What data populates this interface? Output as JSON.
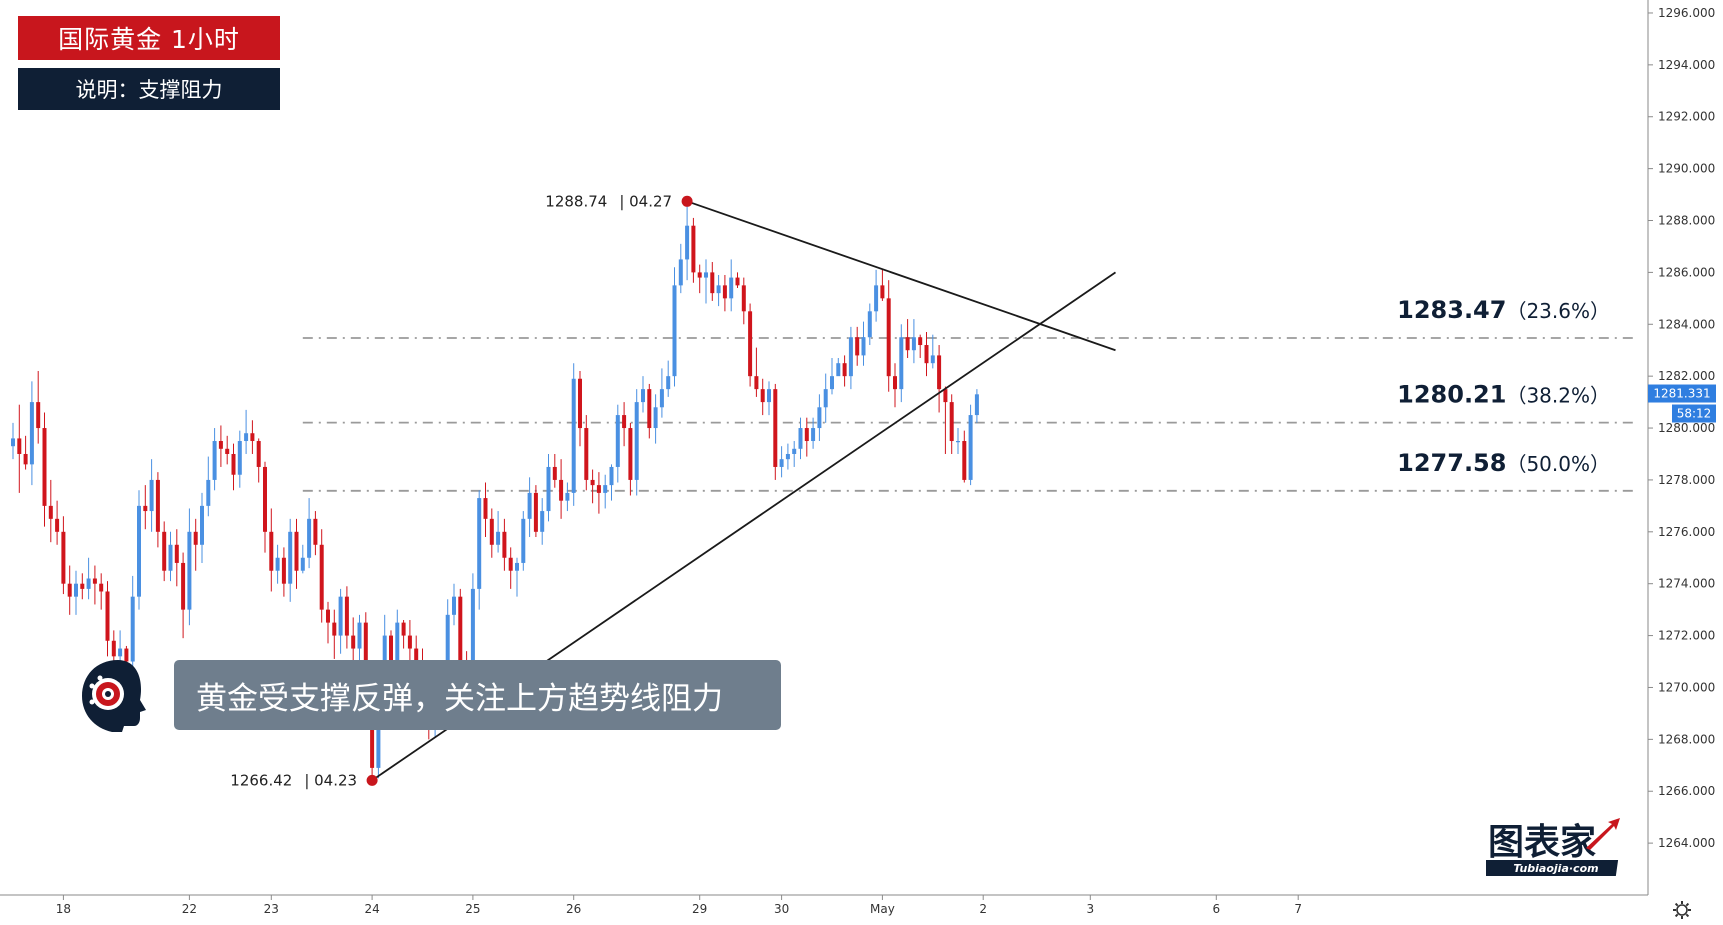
{
  "header": {
    "title": "国际黄金  1小时",
    "subtitle": "说明：支撑阻力"
  },
  "callout": {
    "text": "黄金受支撑反弹，关注上方趋势线阻力"
  },
  "watermark": {
    "brand": "图表家",
    "site": "Tubiaojia·com"
  },
  "colors": {
    "up": "#4a90e2",
    "down": "#d0151c",
    "title_bg": "#c8161d",
    "subtitle_bg": "#0f1f35",
    "callout_bg": "#6f7e8d",
    "marker": "#c8161d",
    "price_tag": "#2f7ee0"
  },
  "chart_data": {
    "type": "candlestick",
    "symbol_timeframe": "国际黄金 1小时",
    "ylim": [
      1262.0,
      1296.5
    ],
    "y_ticks": [
      "1296.000",
      "1294.000",
      "1292.000",
      "1290.000",
      "1288.000",
      "1286.000",
      "1284.000",
      "1282.000",
      "1280.000",
      "1278.000",
      "1276.000",
      "1274.000",
      "1272.000",
      "1270.000",
      "1268.000",
      "1266.000",
      "1264.000"
    ],
    "x_ticks": [
      {
        "label": "18",
        "slot": 8
      },
      {
        "label": "22",
        "slot": 28
      },
      {
        "label": "23",
        "slot": 41
      },
      {
        "label": "24",
        "slot": 57
      },
      {
        "label": "25",
        "slot": 73
      },
      {
        "label": "26",
        "slot": 89
      },
      {
        "label": "29",
        "slot": 109
      },
      {
        "label": "30",
        "slot": 122
      },
      {
        "label": "May",
        "slot": 138
      },
      {
        "label": "2",
        "slot": 154
      },
      {
        "label": "3",
        "slot": 171
      },
      {
        "label": "6",
        "slot": 191
      },
      {
        "label": "7",
        "slot": 204
      }
    ],
    "current_price": "1281.331",
    "countdown": "58:12",
    "points": [
      {
        "label": "1266.42",
        "date": "04.23",
        "price": 1266.42,
        "slot": 57
      },
      {
        "label": "1288.74",
        "date": "04.27",
        "price": 1288.74,
        "slot": 107
      }
    ],
    "trendlines": [
      {
        "name": "support",
        "from": {
          "slot": 57,
          "price": 1266.42
        },
        "to": {
          "slot": 175,
          "price": 1286.0
        }
      },
      {
        "name": "resistance",
        "from": {
          "slot": 107,
          "price": 1288.74
        },
        "to": {
          "slot": 175,
          "price": 1283.0
        }
      }
    ],
    "levels": [
      {
        "value": 1283.47,
        "label": "1283.47",
        "pct": "（23.6%）"
      },
      {
        "value": 1280.21,
        "label": "1280.21",
        "pct": "（38.2%）"
      },
      {
        "value": 1277.58,
        "label": "1277.58",
        "pct": "（50.0%）"
      }
    ],
    "closes": [
      1279.6,
      1279.0,
      1278.6,
      1281.0,
      1280.0,
      1277.0,
      1276.5,
      1276.0,
      1274.0,
      1273.5,
      1274.0,
      1273.8,
      1274.2,
      1274.0,
      1273.7,
      1271.8,
      1271.2,
      1271.5,
      1271.0,
      1273.5,
      1277.0,
      1276.8,
      1278.0,
      1276.0,
      1274.5,
      1275.5,
      1274.8,
      1273.0,
      1276.0,
      1275.5,
      1277.0,
      1278.0,
      1279.5,
      1279.2,
      1279.0,
      1278.2,
      1279.5,
      1279.8,
      1279.5,
      1278.5,
      1276.0,
      1274.5,
      1275.0,
      1274.0,
      1276.0,
      1274.5,
      1275.0,
      1276.5,
      1275.5,
      1273.0,
      1272.5,
      1272.0,
      1273.5,
      1272.0,
      1271.5,
      1272.5,
      1271.0,
      1266.9,
      1270.5,
      1272.0,
      1271.0,
      1272.5,
      1272.0,
      1271.5,
      1271.0,
      1270.5,
      1268.5,
      1269.5,
      1270.0,
      1272.8,
      1273.5,
      1271.0,
      1270.5,
      1273.8,
      1277.3,
      1276.5,
      1275.5,
      1276.0,
      1275.0,
      1274.5,
      1274.8,
      1276.5,
      1277.5,
      1276.0,
      1276.8,
      1278.5,
      1278.0,
      1277.2,
      1277.5,
      1281.9,
      1280.0,
      1278.0,
      1277.8,
      1277.5,
      1277.8,
      1278.5,
      1280.5,
      1280.0,
      1278.0,
      1281.0,
      1281.5,
      1280.0,
      1280.8,
      1281.5,
      1282.0,
      1285.5,
      1286.5,
      1287.8,
      1286.0,
      1285.8,
      1286.0,
      1285.2,
      1285.5,
      1285.0,
      1285.8,
      1285.5,
      1284.5,
      1282.0,
      1281.5,
      1281.0,
      1281.5,
      1278.5,
      1278.8,
      1279.0,
      1279.2,
      1280.0,
      1279.5,
      1280.0,
      1280.8,
      1281.5,
      1282.0,
      1282.5,
      1282.0,
      1283.5,
      1282.8,
      1283.5,
      1284.5,
      1285.5,
      1285.0,
      1282.0,
      1281.5,
      1283.5,
      1283.0,
      1283.5,
      1283.2,
      1282.5,
      1282.8,
      1281.5,
      1281.0,
      1279.5,
      1279.5,
      1278.0,
      1280.5,
      1281.3
    ],
    "ranges": [
      [
        1280.2,
        1278.8
      ],
      [
        1280.9,
        1277.5
      ],
      [
        1279.7,
        1278.4
      ],
      [
        1281.8,
        1277.8
      ],
      [
        1282.2,
        1279.4
      ],
      [
        1280.6,
        1276.2
      ],
      [
        1278.0,
        1275.6
      ],
      [
        1277.2,
        1275.5
      ],
      [
        1276.6,
        1273.6
      ],
      [
        1274.7,
        1272.8
      ],
      [
        1274.5,
        1272.8
      ],
      [
        1274.4,
        1273.4
      ],
      [
        1275.0,
        1273.4
      ],
      [
        1274.7,
        1273.2
      ],
      [
        1274.4,
        1273.0
      ],
      [
        1274.1,
        1271.2
      ],
      [
        1272.2,
        1270.6
      ],
      [
        1272.2,
        1270.9
      ],
      [
        1271.6,
        1270.2
      ],
      [
        1274.3,
        1270.6
      ],
      [
        1277.6,
        1273.0
      ],
      [
        1277.8,
        1276.1
      ],
      [
        1278.8,
        1276.0
      ],
      [
        1278.3,
        1275.4
      ],
      [
        1276.4,
        1274.1
      ],
      [
        1276.0,
        1274.1
      ],
      [
        1276.1,
        1273.9
      ],
      [
        1275.2,
        1271.9
      ],
      [
        1276.9,
        1272.4
      ],
      [
        1276.5,
        1274.5
      ],
      [
        1277.5,
        1274.8
      ],
      [
        1278.9,
        1276.6
      ],
      [
        1280.0,
        1277.6
      ],
      [
        1280.1,
        1278.5
      ],
      [
        1279.7,
        1278.6
      ],
      [
        1279.4,
        1277.6
      ],
      [
        1279.9,
        1277.7
      ],
      [
        1280.7,
        1279.0
      ],
      [
        1280.3,
        1279.0
      ],
      [
        1279.6,
        1277.9
      ],
      [
        1278.7,
        1275.2
      ],
      [
        1276.9,
        1273.7
      ],
      [
        1275.5,
        1274.0
      ],
      [
        1275.4,
        1273.5
      ],
      [
        1276.5,
        1273.3
      ],
      [
        1276.5,
        1273.8
      ],
      [
        1275.5,
        1274.4
      ],
      [
        1277.3,
        1274.6
      ],
      [
        1276.8,
        1275.1
      ],
      [
        1276.1,
        1272.5
      ],
      [
        1273.3,
        1271.7
      ],
      [
        1273.0,
        1271.1
      ],
      [
        1273.8,
        1271.3
      ],
      [
        1273.9,
        1271.5
      ],
      [
        1272.7,
        1270.6
      ],
      [
        1272.8,
        1270.9
      ],
      [
        1272.9,
        1269.0
      ],
      [
        1271.0,
        1266.4
      ],
      [
        1270.9,
        1266.5
      ],
      [
        1272.8,
        1270.1
      ],
      [
        1272.2,
        1270.5
      ],
      [
        1273.0,
        1270.4
      ],
      [
        1272.6,
        1271.5
      ],
      [
        1272.6,
        1270.8
      ],
      [
        1272.0,
        1270.4
      ],
      [
        1271.5,
        1269.5
      ],
      [
        1270.9,
        1268.0
      ],
      [
        1270.4,
        1268.1
      ],
      [
        1270.8,
        1269.2
      ],
      [
        1273.4,
        1269.4
      ],
      [
        1274.0,
        1272.4
      ],
      [
        1273.8,
        1270.3
      ],
      [
        1271.4,
        1270.2
      ],
      [
        1274.4,
        1270.0
      ],
      [
        1277.6,
        1273.0
      ],
      [
        1277.9,
        1275.8
      ],
      [
        1276.9,
        1275.0
      ],
      [
        1276.8,
        1275.2
      ],
      [
        1276.5,
        1274.5
      ],
      [
        1275.4,
        1273.8
      ],
      [
        1275.0,
        1273.5
      ],
      [
        1276.8,
        1274.5
      ],
      [
        1278.1,
        1275.8
      ],
      [
        1277.8,
        1275.8
      ],
      [
        1277.3,
        1275.5
      ],
      [
        1279.0,
        1276.4
      ],
      [
        1279.0,
        1277.7
      ],
      [
        1278.8,
        1276.5
      ],
      [
        1277.9,
        1276.8
      ],
      [
        1282.5,
        1277.0
      ],
      [
        1282.2,
        1279.3
      ],
      [
        1280.5,
        1277.6
      ],
      [
        1278.4,
        1277.1
      ],
      [
        1278.3,
        1276.7
      ],
      [
        1278.2,
        1276.9
      ],
      [
        1278.6,
        1277.2
      ],
      [
        1280.9,
        1277.9
      ],
      [
        1281.0,
        1279.3
      ],
      [
        1280.2,
        1277.4
      ],
      [
        1281.5,
        1277.4
      ],
      [
        1282.0,
        1280.6
      ],
      [
        1281.7,
        1279.6
      ],
      [
        1281.3,
        1279.4
      ],
      [
        1282.3,
        1280.4
      ],
      [
        1282.6,
        1281.2
      ],
      [
        1286.2,
        1281.6
      ],
      [
        1287.1,
        1285.2
      ],
      [
        1288.7,
        1285.7
      ],
      [
        1288.1,
        1285.6
      ],
      [
        1286.3,
        1285.2
      ],
      [
        1286.5,
        1284.8
      ],
      [
        1286.4,
        1284.9
      ],
      [
        1285.9,
        1284.7
      ],
      [
        1285.9,
        1284.5
      ],
      [
        1286.5,
        1284.5
      ],
      [
        1286.0,
        1285.4
      ],
      [
        1285.8,
        1284.0
      ],
      [
        1284.8,
        1281.6
      ],
      [
        1283.1,
        1281.2
      ],
      [
        1281.9,
        1280.5
      ],
      [
        1281.8,
        1280.5
      ],
      [
        1281.7,
        1278.0
      ],
      [
        1279.3,
        1278.1
      ],
      [
        1279.4,
        1278.4
      ],
      [
        1279.5,
        1278.5
      ],
      [
        1280.4,
        1278.8
      ],
      [
        1280.4,
        1278.9
      ],
      [
        1280.4,
        1279.2
      ],
      [
        1281.3,
        1279.5
      ],
      [
        1282.1,
        1280.2
      ],
      [
        1282.7,
        1281.3
      ],
      [
        1282.7,
        1282.1
      ],
      [
        1282.8,
        1281.6
      ],
      [
        1283.9,
        1281.5
      ],
      [
        1283.9,
        1282.4
      ],
      [
        1284.1,
        1282.4
      ],
      [
        1284.8,
        1283.2
      ],
      [
        1286.1,
        1284.1
      ],
      [
        1286.1,
        1284.9
      ],
      [
        1285.7,
        1281.4
      ],
      [
        1282.5,
        1280.8
      ],
      [
        1284.0,
        1281.0
      ],
      [
        1284.2,
        1282.7
      ],
      [
        1284.2,
        1282.5
      ],
      [
        1283.6,
        1282.7
      ],
      [
        1283.7,
        1282.0
      ],
      [
        1283.6,
        1282.3
      ],
      [
        1283.2,
        1280.6
      ],
      [
        1281.6,
        1279.0
      ],
      [
        1281.3,
        1279.0
      ],
      [
        1280.0,
        1279.0
      ],
      [
        1279.9,
        1277.9
      ],
      [
        1280.9,
        1277.8
      ],
      [
        1281.5,
        1280.2
      ]
    ]
  }
}
